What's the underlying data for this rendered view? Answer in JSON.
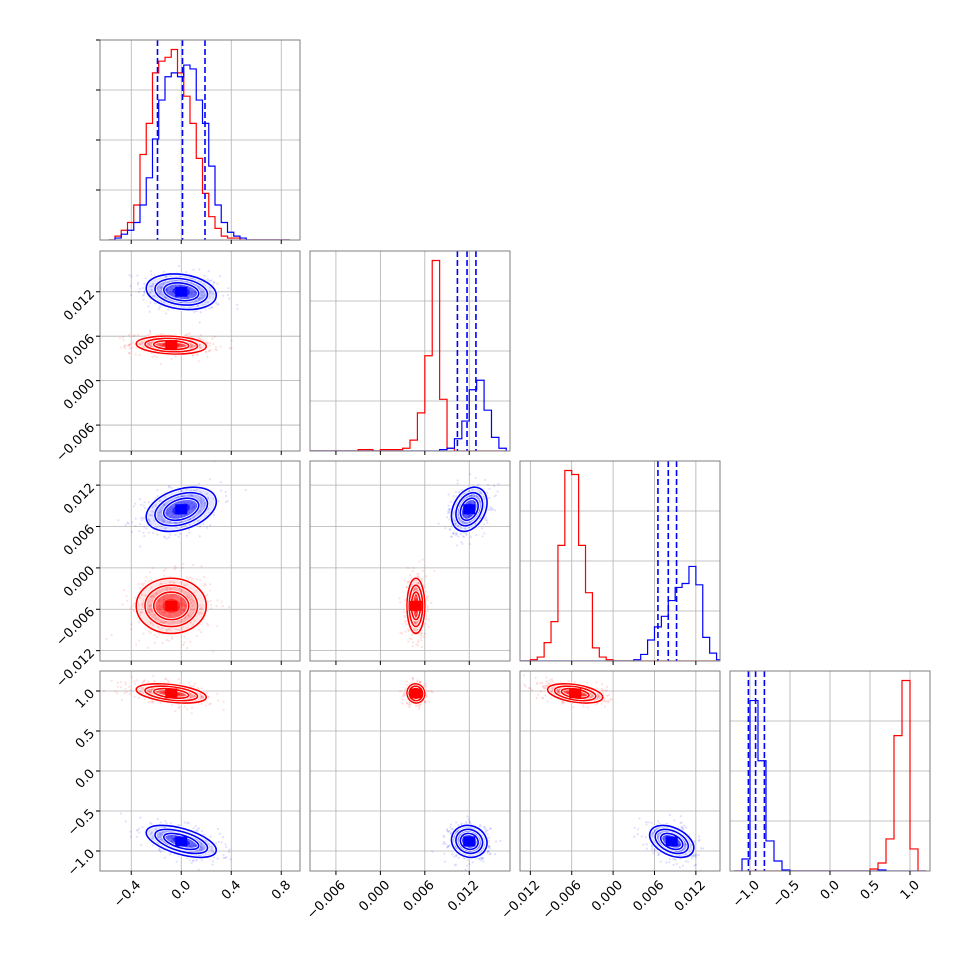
{
  "chart_data": {
    "type": "corner",
    "grid": true,
    "colors": {
      "series_a": "#0000ff",
      "series_b": "#ff0000",
      "frame": "#7f7f7f",
      "grid": "#b0b0b0"
    },
    "series": [
      {
        "color": "#0000ff",
        "mean": [
          0.0,
          0.012,
          0.0085,
          -0.88
        ],
        "std": [
          0.14,
          0.0012,
          0.0016,
          0.1
        ],
        "quantiles": [
          [
            -0.19,
            0.01,
            0.19
          ],
          [
            0.0104,
            0.0117,
            0.0129
          ],
          [
            0.0065,
            0.008,
            0.0092
          ],
          [
            -1.02,
            -0.93,
            -0.82
          ]
        ],
        "corr": [
          [
            0,
            1,
            -0.2
          ],
          [
            0,
            2,
            0.35
          ],
          [
            0,
            3,
            -0.55
          ],
          [
            1,
            2,
            0.3
          ],
          [
            1,
            3,
            -0.1
          ],
          [
            2,
            3,
            -0.4
          ]
        ]
      },
      {
        "color": "#ff0000",
        "mean": [
          -0.08,
          0.0048,
          -0.0055,
          0.97
        ],
        "std": [
          0.14,
          0.0006,
          0.002,
          0.06
        ],
        "corr": [
          [
            0,
            1,
            -0.15
          ],
          [
            0,
            2,
            0.0
          ],
          [
            0,
            3,
            -0.4
          ],
          [
            1,
            2,
            0.0
          ],
          [
            1,
            3,
            -0.05
          ],
          [
            2,
            3,
            -0.4
          ]
        ]
      }
    ],
    "histograms": [
      {
        "edges": [
          -0.58,
          -0.53,
          -0.48,
          -0.43,
          -0.38,
          -0.33,
          -0.28,
          -0.23,
          -0.18,
          -0.13,
          -0.08,
          -0.03,
          0.02,
          0.07,
          0.12,
          0.17,
          0.22,
          0.27,
          0.32,
          0.37,
          0.42,
          0.47,
          0.52,
          0.57,
          0.62,
          0.67,
          0.72,
          0.77,
          0.82,
          0.87
        ],
        "blue": [
          0,
          1,
          3,
          5,
          9,
          18,
          32,
          52,
          72,
          84,
          86,
          84,
          90,
          88,
          72,
          60,
          38,
          18,
          9,
          4,
          2,
          1,
          0,
          0,
          0,
          0,
          0,
          0,
          0
        ],
        "red": [
          0,
          2,
          5,
          9,
          18,
          44,
          60,
          86,
          92,
          94,
          98,
          86,
          74,
          60,
          42,
          24,
          12,
          6,
          2,
          1,
          1,
          0,
          0,
          0,
          0,
          0,
          0,
          0,
          0
        ]
      },
      {
        "edges": [
          -0.01,
          -0.009,
          -0.008,
          -0.007,
          -0.006,
          -0.005,
          -0.004,
          -0.003,
          -0.002,
          -0.001,
          0.0,
          0.001,
          0.002,
          0.003,
          0.004,
          0.005,
          0.006,
          0.007,
          0.008,
          0.009,
          0.01,
          0.011,
          0.012,
          0.013,
          0.014,
          0.015,
          0.016,
          0.017
        ],
        "blue": [
          0,
          0,
          0,
          0,
          0,
          0,
          0,
          0,
          0,
          0,
          0,
          0,
          0,
          0,
          0,
          0,
          0,
          0,
          1,
          2,
          9,
          22,
          45,
          52,
          30,
          10,
          2
        ],
        "red": [
          0,
          0,
          0,
          0,
          0,
          0,
          0,
          1,
          1,
          0,
          1,
          1,
          1,
          2,
          8,
          28,
          70,
          140,
          38,
          2,
          0,
          0,
          0,
          0,
          0,
          0,
          0
        ]
      },
      {
        "edges": [
          -0.015,
          -0.014,
          -0.013,
          -0.012,
          -0.011,
          -0.01,
          -0.009,
          -0.008,
          -0.007,
          -0.006,
          -0.005,
          -0.004,
          -0.003,
          -0.002,
          -0.001,
          0.0,
          0.001,
          0.002,
          0.003,
          0.004,
          0.005,
          0.006,
          0.007,
          0.008,
          0.009,
          0.01,
          0.011,
          0.012,
          0.013,
          0.014,
          0.015,
          0.016
        ],
        "blue": [
          0,
          0,
          0,
          0,
          0,
          0,
          0,
          0,
          0,
          0,
          0,
          0,
          0,
          0,
          0,
          0,
          0,
          0,
          1,
          5,
          16,
          26,
          34,
          46,
          56,
          59,
          72,
          58,
          18,
          6,
          1
        ],
        "red": [
          0,
          0,
          0,
          1,
          3,
          14,
          30,
          88,
          145,
          142,
          88,
          52,
          10,
          3,
          1,
          0,
          0,
          0,
          0,
          0,
          0,
          0,
          0,
          0,
          0,
          0,
          0,
          0,
          0,
          0,
          0
        ]
      },
      {
        "edges": [
          -1.2,
          -1.1,
          -1.0,
          -0.9,
          -0.8,
          -0.7,
          -0.6,
          -0.5,
          -0.4,
          -0.3,
          -0.2,
          -0.1,
          0.0,
          0.1,
          0.2,
          0.3,
          0.4,
          0.5,
          0.6,
          0.7,
          0.8,
          0.9,
          1.0,
          1.1,
          1.2
        ],
        "blue": [
          0,
          12,
          170,
          110,
          30,
          10,
          1,
          0,
          0,
          0,
          0,
          0,
          0,
          0,
          0,
          0,
          0,
          0,
          1,
          0,
          0,
          0,
          0,
          0
        ],
        "red": [
          0,
          0,
          0,
          0,
          0,
          0,
          0,
          0,
          0,
          0,
          0,
          0,
          0,
          0,
          0,
          0,
          0,
          2,
          8,
          32,
          135,
          190,
          22,
          0
        ]
      }
    ],
    "axes": [
      {
        "range": [
          -0.65,
          0.95
        ],
        "ticks": [
          -0.4,
          0.0,
          0.4,
          0.8
        ],
        "ticklabels": [
          "−0.4",
          "0.0",
          "0.4",
          "0.8"
        ]
      },
      {
        "range": [
          -0.0095,
          0.0175
        ],
        "ticks": [
          -0.006,
          0.0,
          0.006,
          0.012
        ],
        "ticklabels": [
          "−0.006",
          "0.000",
          "0.006",
          "0.012"
        ]
      },
      {
        "range": [
          -0.0135,
          0.0155
        ],
        "ticks": [
          -0.012,
          -0.006,
          0.0,
          0.006,
          0.012
        ],
        "ticklabels": [
          "−0.012",
          "−0.006",
          "0.000",
          "0.006",
          "0.012"
        ]
      },
      {
        "range": [
          -1.25,
          1.25
        ],
        "ticks": [
          -1.0,
          -0.5,
          0.0,
          0.5,
          1.0
        ],
        "ticklabels": [
          "−1.0",
          "−0.5",
          "0.0",
          "0.5",
          "1.0"
        ]
      }
    ]
  }
}
